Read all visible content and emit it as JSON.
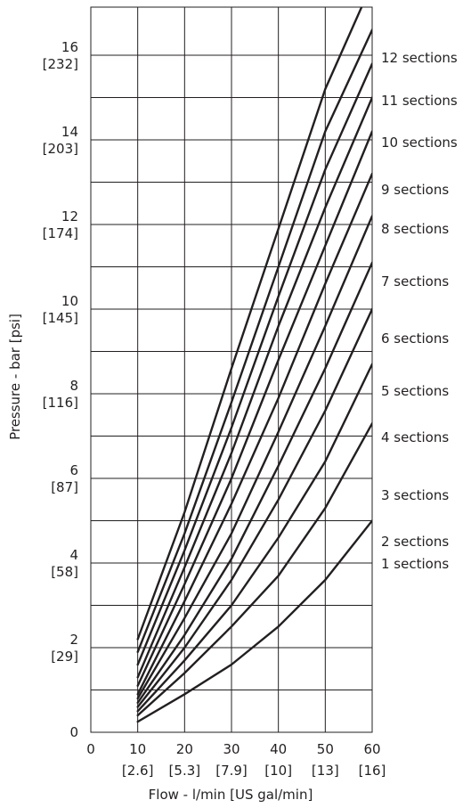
{
  "chart_data": {
    "type": "line",
    "xlabel": "Flow - l/min [US gal/min]",
    "ylabel": "Pressure - bar [psi]",
    "xlim": [
      0,
      60
    ],
    "ylim": [
      0,
      16
    ],
    "grid": true,
    "x_ticks": [
      {
        "value": 0,
        "label": "0",
        "sub": ""
      },
      {
        "value": 10,
        "label": "10",
        "sub": "[2.6]"
      },
      {
        "value": 20,
        "label": "20",
        "sub": "[5.3]"
      },
      {
        "value": 30,
        "label": "30",
        "sub": "[7.9]"
      },
      {
        "value": 40,
        "label": "40",
        "sub": "[10]"
      },
      {
        "value": 50,
        "label": "50",
        "sub": "[13]"
      },
      {
        "value": 60,
        "label": "60",
        "sub": "[16]"
      }
    ],
    "y_ticks": [
      {
        "value": 0,
        "label": "0",
        "sub": ""
      },
      {
        "value": 2,
        "label": "2",
        "sub": "[29]"
      },
      {
        "value": 4,
        "label": "4",
        "sub": "[58]"
      },
      {
        "value": 6,
        "label": "6",
        "sub": "[87]"
      },
      {
        "value": 8,
        "label": "8",
        "sub": "[116]"
      },
      {
        "value": 10,
        "label": "10",
        "sub": "[145]"
      },
      {
        "value": 12,
        "label": "12",
        "sub": "[174]"
      },
      {
        "value": 14,
        "label": "14",
        "sub": "[203]"
      },
      {
        "value": 16,
        "label": "16",
        "sub": "[232]"
      }
    ],
    "x": [
      10,
      20,
      30,
      40,
      50,
      60
    ],
    "series": [
      {
        "name": "1 sections",
        "values": [
          0.25,
          0.9,
          1.6,
          2.5,
          3.6,
          5.0
        ]
      },
      {
        "name": "2 sections",
        "values": [
          0.4,
          1.4,
          2.5,
          3.7,
          5.3,
          7.3
        ]
      },
      {
        "name": "3 sections",
        "values": [
          0.5,
          1.7,
          3.0,
          4.6,
          6.4,
          8.7
        ]
      },
      {
        "name": "4 sections",
        "values": [
          0.6,
          2.0,
          3.6,
          5.5,
          7.6,
          10.0
        ]
      },
      {
        "name": "5 sections",
        "values": [
          0.7,
          2.3,
          4.1,
          6.3,
          8.6,
          11.1
        ]
      },
      {
        "name": "6 sections",
        "values": [
          0.8,
          2.7,
          4.7,
          7.1,
          9.6,
          12.2
        ]
      },
      {
        "name": "7 sections",
        "values": [
          0.9,
          3.1,
          5.4,
          7.9,
          10.6,
          13.2
        ]
      },
      {
        "name": "8 sections",
        "values": [
          1.1,
          3.5,
          6.0,
          8.8,
          11.5,
          14.2
        ]
      },
      {
        "name": "9 sections",
        "values": [
          1.3,
          3.9,
          6.6,
          9.6,
          12.4,
          15.0
        ]
      },
      {
        "name": "10 sections",
        "values": [
          1.6,
          4.3,
          7.2,
          10.3,
          13.3,
          15.8
        ]
      },
      {
        "name": "11 sections",
        "values": [
          1.9,
          4.7,
          7.8,
          11.0,
          14.2,
          16.6
        ]
      },
      {
        "name": "12 sections",
        "values": [
          2.2,
          5.2,
          8.6,
          11.9,
          15.2,
          17.7
        ]
      }
    ]
  }
}
